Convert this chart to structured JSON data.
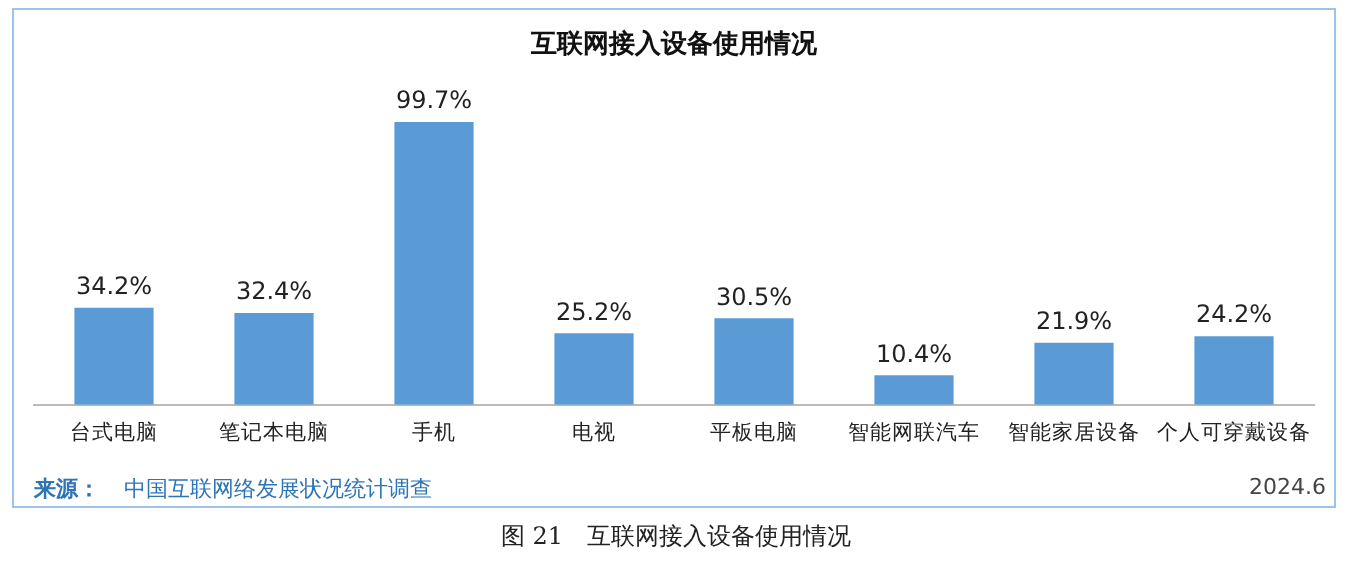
{
  "chart_data": {
    "type": "bar",
    "title": "互联网接入设备使用情况",
    "categories": [
      "台式电脑",
      "笔记本电脑",
      "手机",
      "电视",
      "平板电脑",
      "智能网联汽车",
      "智能家居设备",
      "个人可穿戴设备"
    ],
    "values": [
      34.2,
      32.4,
      99.7,
      25.2,
      30.5,
      10.4,
      21.9,
      24.2
    ],
    "value_labels": [
      "34.2%",
      "32.4%",
      "99.7%",
      "25.2%",
      "30.5%",
      "10.4%",
      "21.9%",
      "24.2%"
    ],
    "color": "#5b9bd5",
    "grid": false,
    "legend": false,
    "tick_labels": "x",
    "annotations": [
      "来源：",
      "中国互联网络发展状况统计调查",
      "2024.6",
      "图 21　互联网接入设备使用情况"
    ]
  }
}
